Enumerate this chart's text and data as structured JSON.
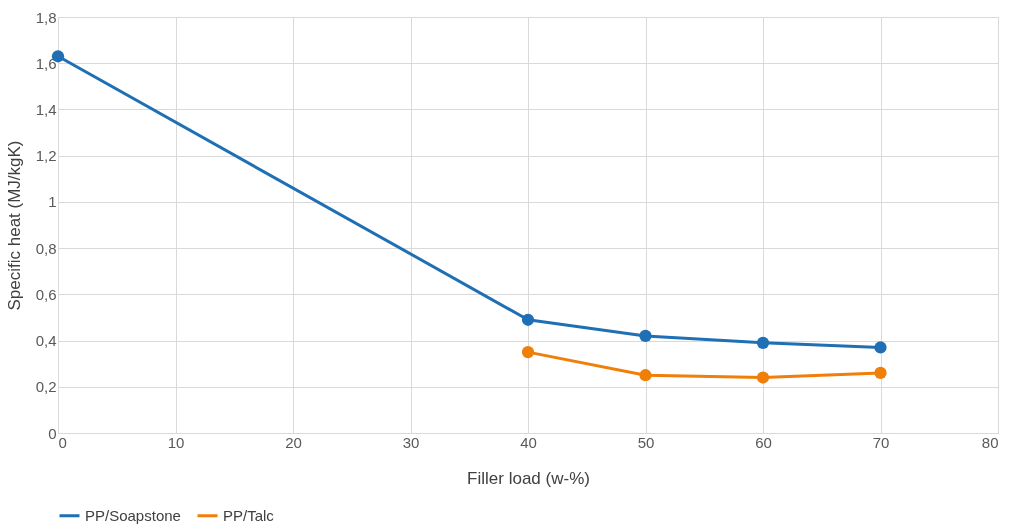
{
  "chart_data": {
    "type": "line",
    "xlabel": "Filler load (w-%)",
    "ylabel": "Specific heat (MJ/kgK)",
    "x": [
      0,
      40,
      50,
      60,
      70
    ],
    "series": [
      {
        "name": "PP/Soapstone",
        "color": "#1f6fb4",
        "values": [
          1.63,
          0.49,
          0.42,
          0.39,
          0.37
        ]
      },
      {
        "name": "PP/Talc",
        "color": "#f07f09",
        "x": [
          40,
          50,
          60,
          70
        ],
        "values": [
          0.35,
          0.25,
          0.24,
          0.26
        ]
      }
    ],
    "xlim": [
      0,
      80
    ],
    "xticks": [
      0,
      10,
      20,
      30,
      40,
      50,
      60,
      70,
      80
    ],
    "ylim": [
      0,
      1.8
    ],
    "yticks": [
      0,
      {
        "value": 0.2,
        "label": "0,2"
      },
      {
        "value": 0.4,
        "label": "0,4"
      },
      {
        "value": 0.6,
        "label": "0,6"
      },
      {
        "value": 0.8,
        "label": "0,8"
      },
      1,
      {
        "value": 1.2,
        "label": "1,2"
      },
      {
        "value": 1.4,
        "label": "1,4"
      },
      {
        "value": 1.6,
        "label": "1,6"
      },
      {
        "value": 1.8,
        "label": "1,8"
      }
    ],
    "grid": true,
    "legend": "bottom",
    "marker": "circle",
    "line_style": "solid"
  }
}
